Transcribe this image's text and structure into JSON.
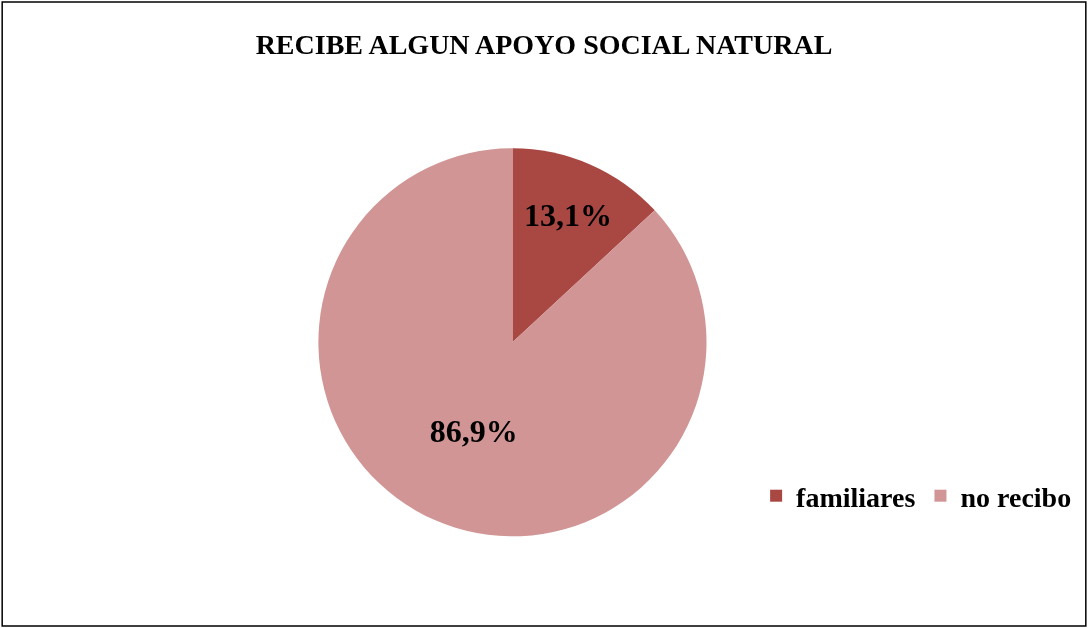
{
  "chart_data": {
    "type": "pie",
    "title": "RECIBE ALGUN APOYO SOCIAL NATURAL",
    "categories": [
      "familiares",
      "no recibo"
    ],
    "values": [
      13.1,
      86.9
    ],
    "colors": [
      "#a94743",
      "#d09594"
    ],
    "value_labels": [
      "13,1%",
      "86,9%"
    ],
    "legend": "bottom right"
  }
}
